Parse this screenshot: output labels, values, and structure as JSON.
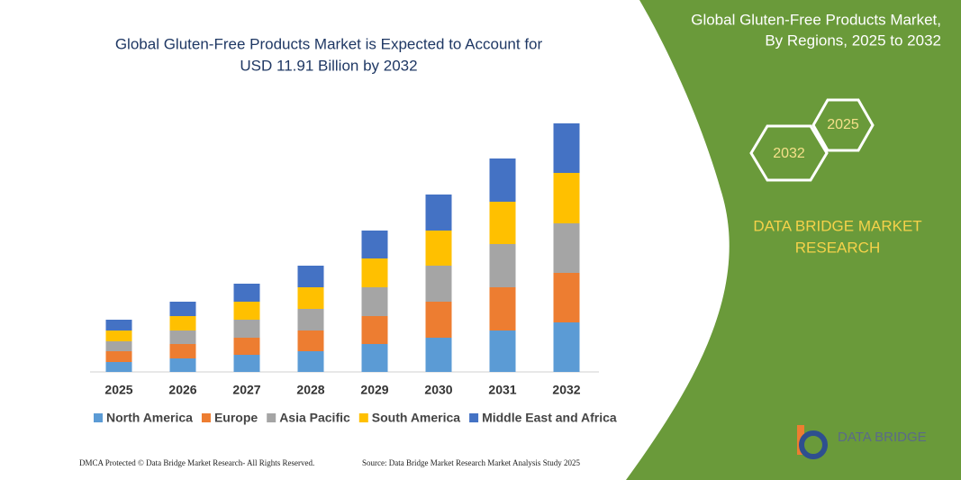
{
  "chart_data": {
    "type": "stacked-bar",
    "title": [
      "Global Gluten-Free Products Market is Expected to Account for",
      "USD 11.91 Billion by 2032"
    ],
    "categories": [
      "2025",
      "2026",
      "2027",
      "2028",
      "2029",
      "2030",
      "2031",
      "2032"
    ],
    "series": [
      {
        "name": "North America",
        "color": "#5b9bd5",
        "values": [
          11,
          15,
          19,
          23,
          31,
          38,
          46,
          55
        ]
      },
      {
        "name": "Europe",
        "color": "#ed7d31",
        "values": [
          12,
          16,
          19,
          23,
          31,
          40,
          48,
          55
        ]
      },
      {
        "name": "Asia Pacific",
        "color": "#a5a5a5",
        "values": [
          11,
          15,
          20,
          24,
          32,
          40,
          48,
          55
        ]
      },
      {
        "name": "South America",
        "color": "#ffc000",
        "values": [
          12,
          16,
          20,
          24,
          32,
          39,
          47,
          56
        ]
      },
      {
        "name": "Middle East and Africa",
        "color": "#4472c4",
        "values": [
          12,
          16,
          20,
          24,
          31,
          40,
          48,
          55
        ]
      }
    ]
  },
  "panel": {
    "title": [
      "Global Gluten-Free Products Market,",
      "By Regions, 2025 to 2032"
    ],
    "hex_labels": [
      "2025",
      "2032"
    ],
    "brand": [
      "DATA BRIDGE MARKET",
      "RESEARCH"
    ],
    "logo": "DATA BRIDGE"
  },
  "footer": {
    "left": "DMCA Protected © Data Bridge Market Research- All Rights Reserved.",
    "right": "Source: Data Bridge Market Research Market Analysis Study 2025"
  }
}
